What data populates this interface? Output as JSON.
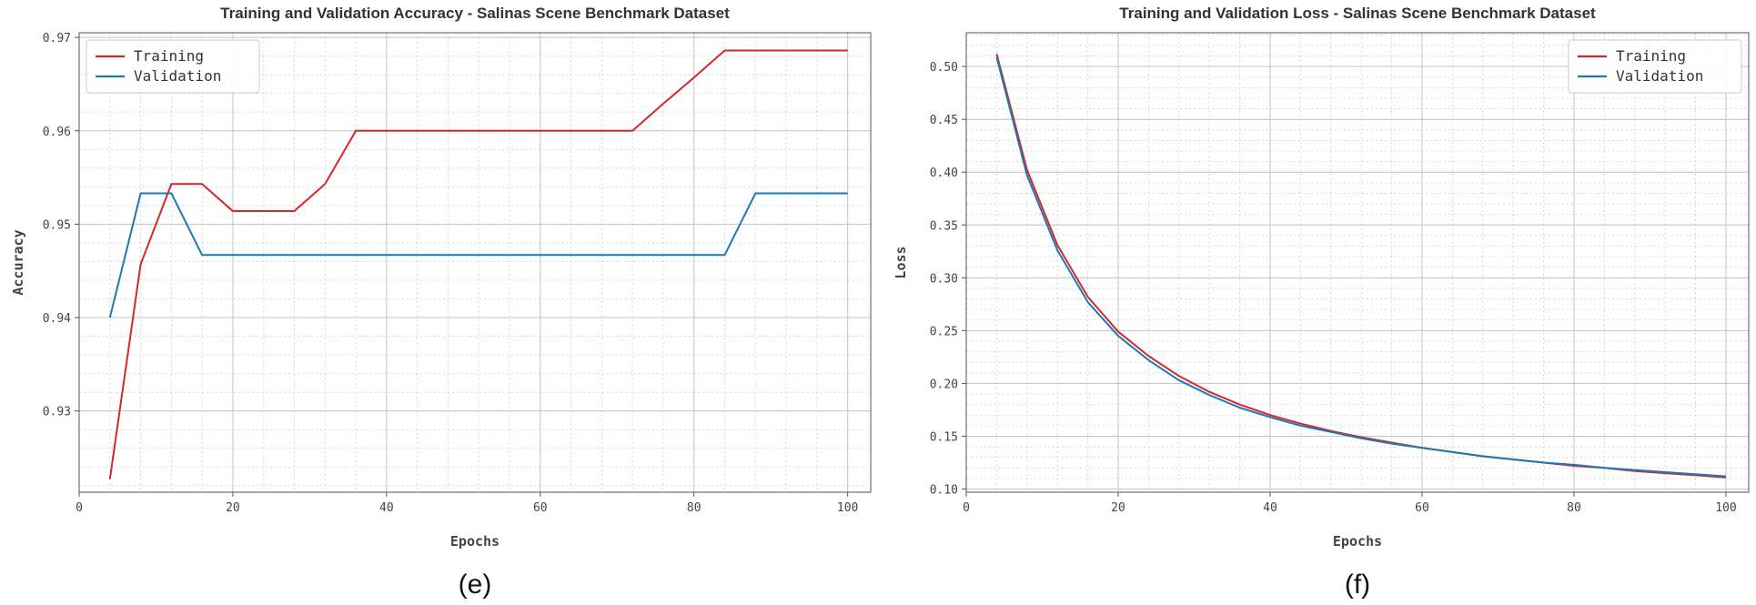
{
  "chart_data": [
    {
      "type": "line",
      "title": "Training and Validation Accuracy - Salinas Scene Benchmark Dataset",
      "xlabel": "Epochs",
      "ylabel": "Accuracy",
      "caption": "(e)",
      "xlim": [
        0,
        103
      ],
      "ylim": [
        0.9213,
        0.9705
      ],
      "xticks": [
        0,
        20,
        40,
        60,
        80,
        100
      ],
      "xtick_labels": [
        "0",
        "20",
        "40",
        "60",
        "80",
        "100"
      ],
      "yticks": [
        0.93,
        0.94,
        0.95,
        0.96,
        0.97
      ],
      "ytick_labels": [
        "0.93",
        "0.94",
        "0.95",
        "0.96",
        "0.97"
      ],
      "grid": true,
      "legend_position": "top-left",
      "series": [
        {
          "name": "Training",
          "color": "#d62728",
          "x": [
            4,
            8,
            12,
            16,
            20,
            24,
            28,
            32,
            36,
            40,
            44,
            48,
            52,
            56,
            60,
            64,
            68,
            72,
            76,
            80,
            84,
            88,
            92,
            96,
            100
          ],
          "y": [
            0.9227,
            0.9457,
            0.9543,
            0.9543,
            0.9514,
            0.9514,
            0.9514,
            0.9543,
            0.96,
            0.96,
            0.96,
            0.96,
            0.96,
            0.96,
            0.96,
            0.96,
            0.96,
            0.96,
            0.9629,
            0.9657,
            0.9686,
            0.9686,
            0.9686,
            0.9686,
            0.9686
          ]
        },
        {
          "name": "Validation",
          "color": "#1f77b4",
          "x": [
            4,
            8,
            12,
            16,
            20,
            24,
            28,
            32,
            36,
            40,
            44,
            48,
            52,
            56,
            60,
            64,
            68,
            72,
            76,
            80,
            84,
            88,
            92,
            96,
            100
          ],
          "y": [
            0.94,
            0.9533,
            0.9533,
            0.9467,
            0.9467,
            0.9467,
            0.9467,
            0.9467,
            0.9467,
            0.9467,
            0.9467,
            0.9467,
            0.9467,
            0.9467,
            0.9467,
            0.9467,
            0.9467,
            0.9467,
            0.9467,
            0.9467,
            0.9467,
            0.9533,
            0.9533,
            0.9533,
            0.9533
          ]
        }
      ]
    },
    {
      "type": "line",
      "title": "Training and Validation Loss - Salinas Scene Benchmark Dataset",
      "xlabel": "Epochs",
      "ylabel": "Loss",
      "caption": "(f)",
      "xlim": [
        0,
        103
      ],
      "ylim": [
        0.097,
        0.532
      ],
      "xticks": [
        0,
        20,
        40,
        60,
        80,
        100
      ],
      "xtick_labels": [
        "0",
        "20",
        "40",
        "60",
        "80",
        "100"
      ],
      "yticks": [
        0.1,
        0.15,
        0.2,
        0.25,
        0.3,
        0.35,
        0.4,
        0.45,
        0.5
      ],
      "ytick_labels": [
        "0.10",
        "0.15",
        "0.20",
        "0.25",
        "0.30",
        "0.35",
        "0.40",
        "0.45",
        "0.50"
      ],
      "grid": true,
      "legend_position": "top-right",
      "series": [
        {
          "name": "Training",
          "color": "#d62728",
          "x": [
            4,
            8,
            12,
            16,
            20,
            24,
            28,
            32,
            36,
            40,
            44,
            48,
            52,
            56,
            60,
            64,
            68,
            72,
            76,
            80,
            84,
            88,
            92,
            96,
            100
          ],
          "y": [
            0.512,
            0.402,
            0.331,
            0.282,
            0.249,
            0.226,
            0.207,
            0.192,
            0.18,
            0.17,
            0.162,
            0.155,
            0.149,
            0.144,
            0.139,
            0.135,
            0.131,
            0.128,
            0.125,
            0.122,
            0.12,
            0.117,
            0.115,
            0.113,
            0.111
          ]
        },
        {
          "name": "Validation",
          "color": "#1f77b4",
          "x": [
            4,
            8,
            12,
            16,
            20,
            24,
            28,
            32,
            36,
            40,
            44,
            48,
            52,
            56,
            60,
            64,
            68,
            72,
            76,
            80,
            84,
            88,
            92,
            96,
            100
          ],
          "y": [
            0.509,
            0.397,
            0.326,
            0.277,
            0.245,
            0.222,
            0.203,
            0.189,
            0.177,
            0.168,
            0.16,
            0.154,
            0.148,
            0.143,
            0.139,
            0.135,
            0.131,
            0.128,
            0.125,
            0.123,
            0.12,
            0.118,
            0.116,
            0.114,
            0.112
          ]
        }
      ]
    }
  ]
}
